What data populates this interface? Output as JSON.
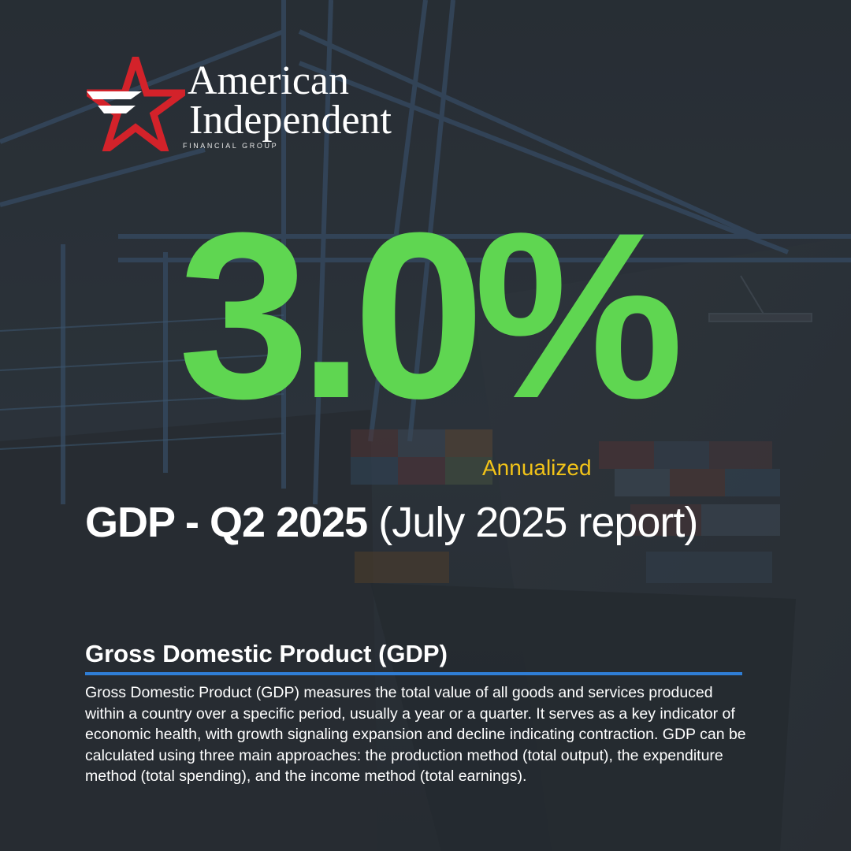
{
  "brand": {
    "name_line1": "American",
    "name_line2": "Independent",
    "tagline": "FINANCIAL GROUP"
  },
  "metric": {
    "value": "3.0%",
    "qualifier": "Annualized",
    "headline_bold": "GDP - Q2 2025",
    "headline_regular": " (July 2025 report)"
  },
  "definition": {
    "title": "Gross Domestic Product (GDP)",
    "body": "Gross Domestic Product (GDP) measures the total value of all goods and services produced within a country over a specific period, usually a year or a quarter. It serves as a key indicator of economic health, with growth signaling expansion and decline indicating contraction. GDP can be calculated using three main approaches: the production method (total output), the expenditure method (total spending), and the income method (total earnings)."
  },
  "colors": {
    "value_green": "#5fd651",
    "qualifier_yellow": "#f2c318",
    "rule_blue": "#2f7ed6",
    "logo_red": "#d3222a"
  }
}
